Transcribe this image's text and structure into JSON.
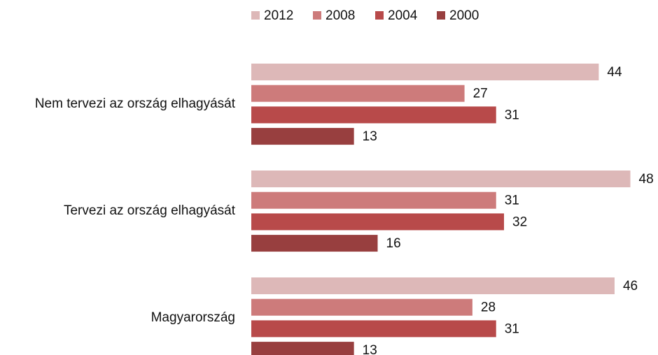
{
  "chart_data": {
    "type": "bar",
    "orientation": "horizontal",
    "categories": [
      "Nem tervezi az ország elhagyását",
      "Tervezi az ország elhagyását",
      "Magyarország"
    ],
    "series": [
      {
        "name": "2012",
        "color": "#ddb8b8",
        "values": [
          44,
          48,
          46
        ]
      },
      {
        "name": "2008",
        "color": "#cd7b7b",
        "values": [
          27,
          31,
          28
        ]
      },
      {
        "name": "2004",
        "color": "#b84a4a",
        "values": [
          31,
          32,
          31
        ]
      },
      {
        "name": "2000",
        "color": "#983f3f",
        "values": [
          13,
          16,
          13
        ]
      }
    ],
    "xlim": [
      0,
      51.5
    ],
    "legend": "top",
    "grid": false
  }
}
